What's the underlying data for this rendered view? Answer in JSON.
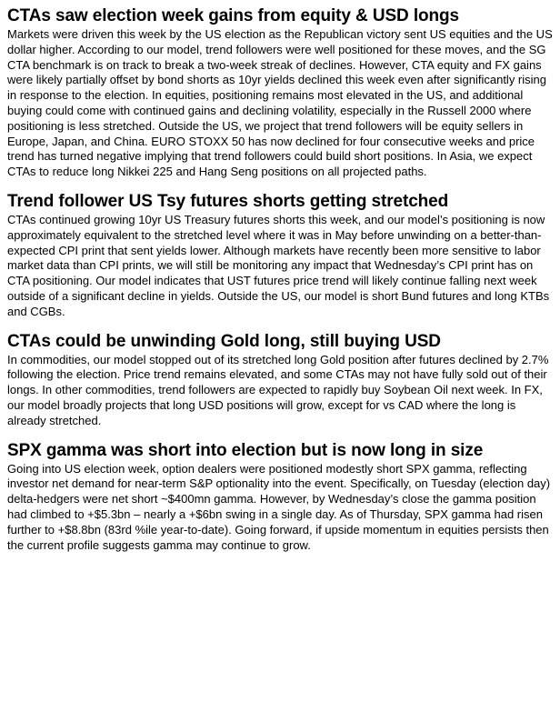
{
  "sections": [
    {
      "title": "CTAs saw election week gains from equity & USD longs",
      "body": "Markets were driven this week by the US election as the Republican victory sent US equities and the US dollar higher.  According to our model, trend followers were well positioned for these moves, and the SG CTA benchmark is on track to break a two-week streak of declines.  However, CTA equity and FX gains were likely partially offset by bond shorts as 10yr yields declined this week even after significantly rising in response to the election.  In equities, positioning remains most elevated in the US, and additional buying could come with continued gains and declining volatility, especially in the Russell 2000 where positioning is less stretched.  Outside the US, we project that trend followers will be equity sellers in Europe, Japan, and China.  EURO STOXX 50 has now declined for four consecutive weeks and price trend has turned negative implying that trend followers could build short positions.  In Asia, we expect CTAs to reduce long Nikkei 225 and Hang Seng positions on all projected paths."
    },
    {
      "title": "Trend follower US Tsy futures shorts getting stretched",
      "body": "CTAs continued growing 10yr US Treasury futures shorts this week, and our model’s positioning is now approximately equivalent to the stretched level where it was in May before unwinding on a better-than-expected CPI print that sent yields lower.  Although markets have recently been more sensitive to labor market data than CPI prints, we will still be monitoring any impact that Wednesday’s CPI print has on CTA positioning.  Our model indicates that UST futures price trend will likely continue falling next week outside of a significant decline in yields.  Outside the US, our model is short Bund futures and long KTBs and CGBs."
    },
    {
      "title": "CTAs could be unwinding Gold long, still buying USD",
      "body": "In commodities, our model stopped out of its stretched long Gold position after futures declined by 2.7% following the election.  Price trend remains elevated, and some CTAs may not have fully sold out of their longs.  In other commodities, trend followers are expected to rapidly buy Soybean Oil next week.  In FX, our model broadly projects that long USD positions will grow, except for vs CAD where the long is already stretched."
    },
    {
      "title": "SPX gamma was short into election but is now long in size",
      "body": "Going into US election week, option dealers were positioned modestly short SPX gamma, reflecting investor net demand for near-term S&P optionality into the event.  Specifically, on Tuesday (election day) delta-hedgers were net short ~$400mn gamma.  However, by Wednesday’s close the gamma position had climbed to +$5.3bn – nearly a +$6bn swing in a single day.  As of Thursday, SPX gamma had risen further to +$8.8bn (83rd %ile year-to-date).  Going forward, if upside momentum in equities persists then the current profile suggests gamma may continue to grow."
    }
  ]
}
